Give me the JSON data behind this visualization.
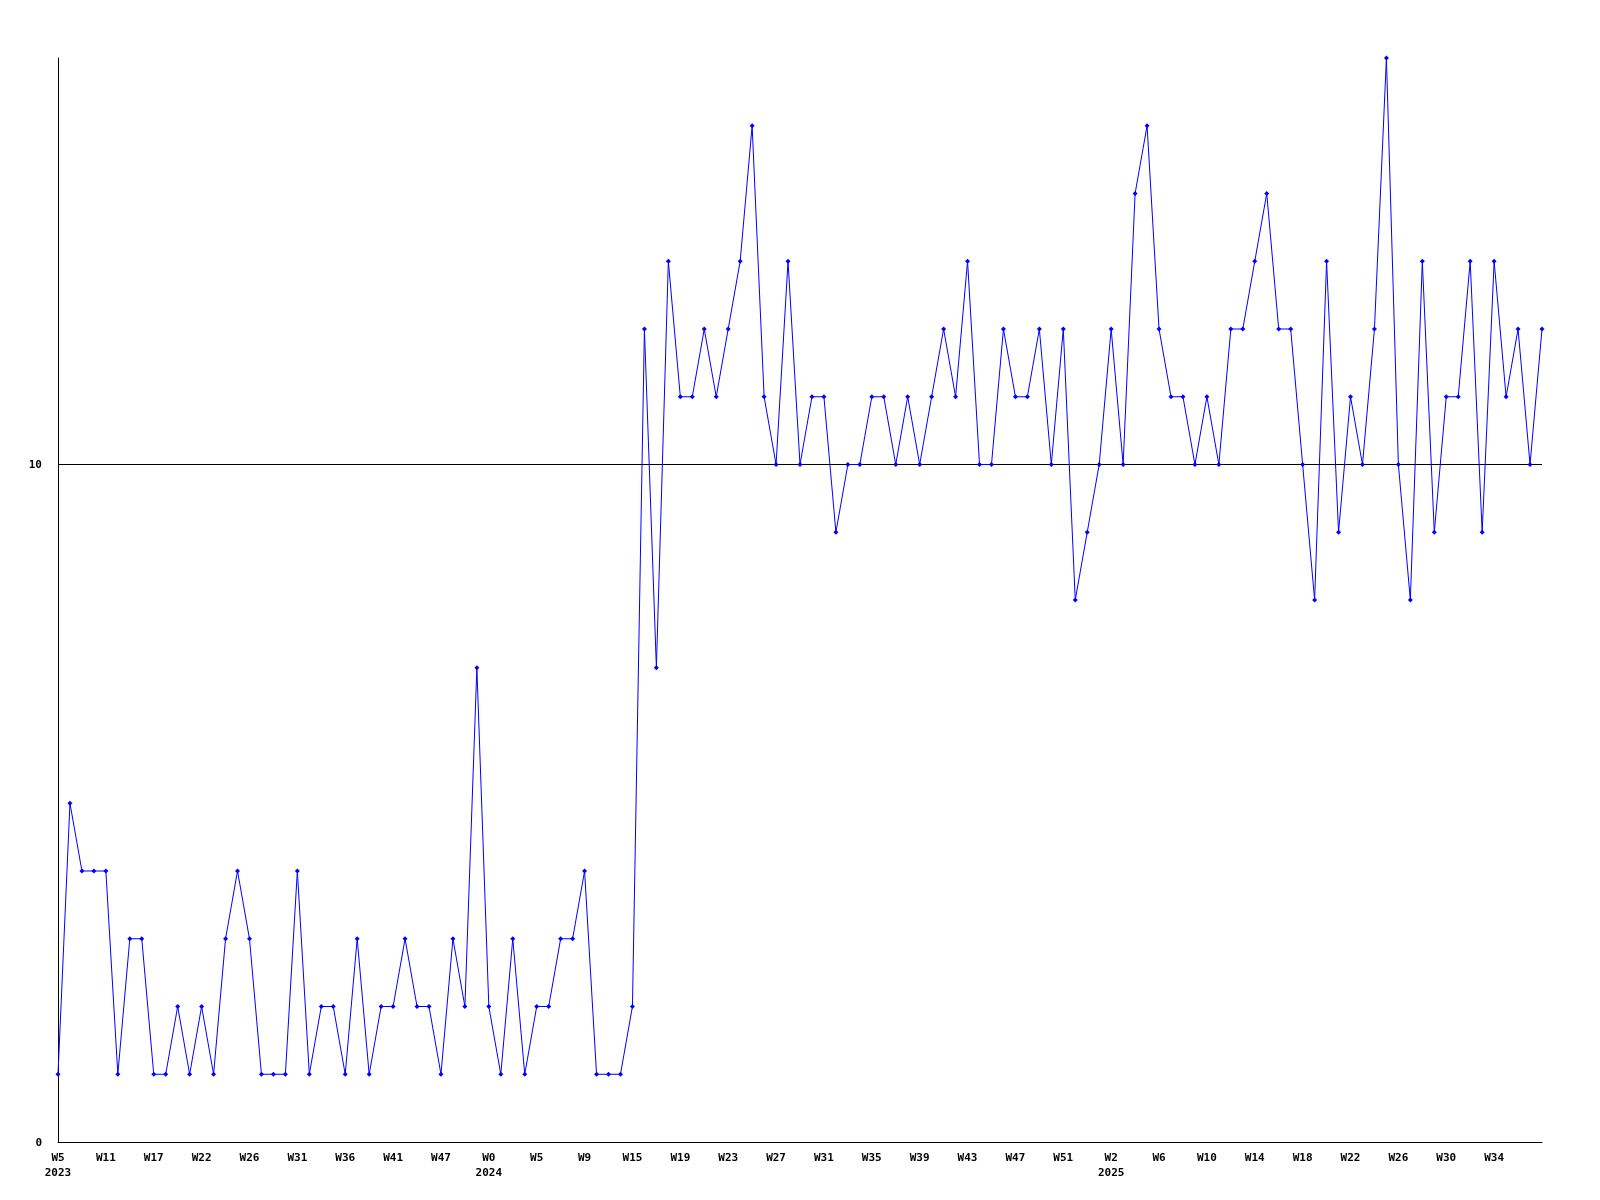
{
  "chart_data": {
    "type": "line",
    "categories": [
      "W5\n2023",
      null,
      null,
      null,
      "W11",
      null,
      null,
      null,
      "W17",
      null,
      null,
      null,
      "W22",
      null,
      null,
      null,
      "W26",
      null,
      null,
      null,
      "W31",
      null,
      null,
      null,
      "W36",
      null,
      null,
      null,
      "W41",
      null,
      null,
      null,
      "W47",
      null,
      null,
      null,
      "W0\n2024",
      null,
      null,
      null,
      "W5",
      null,
      null,
      null,
      "W9",
      null,
      null,
      null,
      "W15",
      null,
      null,
      null,
      "W19",
      null,
      null,
      null,
      "W23",
      null,
      null,
      null,
      "W27",
      null,
      null,
      null,
      "W31",
      null,
      null,
      null,
      "W35",
      null,
      null,
      null,
      "W39",
      null,
      null,
      null,
      "W43",
      null,
      null,
      null,
      "W47",
      null,
      null,
      null,
      "W51",
      null,
      null,
      null,
      "W2\n2025",
      null,
      null,
      null,
      "W6",
      null,
      null,
      null,
      "W10",
      null,
      null,
      null,
      "W14",
      null,
      null,
      null,
      "W18",
      null,
      null,
      null,
      "W22",
      null,
      null,
      null,
      "W26",
      null,
      null,
      null,
      "W30",
      null,
      null,
      null,
      "W34",
      null,
      null,
      null,
      null
    ],
    "values": [
      1,
      5,
      4,
      4,
      4,
      1,
      3,
      3,
      1,
      1,
      2,
      1,
      2,
      1,
      3,
      4,
      3,
      1,
      1,
      1,
      4,
      1,
      2,
      2,
      1,
      3,
      1,
      2,
      2,
      3,
      2,
      2,
      1,
      3,
      2,
      7,
      2,
      1,
      3,
      1,
      2,
      2,
      3,
      3,
      4,
      1,
      1,
      1,
      2,
      12,
      7,
      13,
      11,
      11,
      12,
      11,
      12,
      13,
      15,
      11,
      10,
      13,
      10,
      11,
      11,
      9,
      10,
      10,
      11,
      11,
      10,
      11,
      10,
      11,
      12,
      11,
      13,
      10,
      10,
      12,
      11,
      11,
      12,
      10,
      12,
      8,
      9,
      10,
      12,
      10,
      14,
      15,
      12,
      11,
      11,
      10,
      11,
      10,
      12,
      12,
      13,
      14,
      12,
      12,
      10,
      8,
      13,
      9,
      11,
      10,
      12,
      16,
      10,
      8,
      13,
      9,
      11,
      11,
      13,
      9,
      13,
      11,
      12,
      10,
      12
    ],
    "color": "#0000ff",
    "ylim": [
      0,
      16
    ],
    "yticks": [
      0,
      10
    ],
    "grid": "y",
    "marker": "diamond"
  }
}
